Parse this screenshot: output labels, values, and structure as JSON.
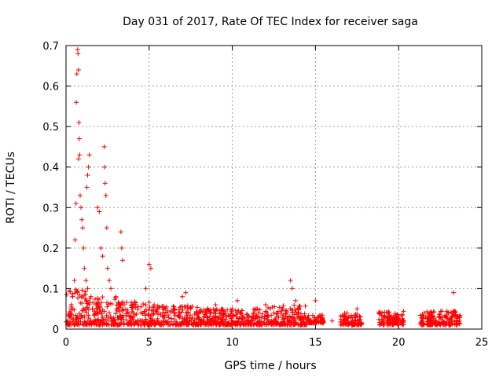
{
  "chart_data": {
    "type": "scatter",
    "title": "Day 031 of 2017, Rate Of TEC Index for receiver saga",
    "xlabel": "GPS time / hours",
    "ylabel": "ROTI / TECUs",
    "xlim": [
      0,
      25
    ],
    "ylim": [
      0,
      0.7
    ],
    "xticks": [
      0,
      5,
      10,
      15,
      20,
      25
    ],
    "yticks": [
      0,
      0.1,
      0.2,
      0.3,
      0.4,
      0.5,
      0.6,
      0.7
    ],
    "grid": true,
    "marker": "+",
    "series_color": "#ff0000",
    "series": [
      {
        "name": "ROTI",
        "points": [
          [
            0.1,
            0.02
          ],
          [
            0.2,
            0.03
          ],
          [
            0.3,
            0.05
          ],
          [
            0.4,
            0.08
          ],
          [
            0.5,
            0.12
          ],
          [
            0.55,
            0.22
          ],
          [
            0.6,
            0.31
          ],
          [
            0.62,
            0.56
          ],
          [
            0.65,
            0.63
          ],
          [
            0.7,
            0.69
          ],
          [
            0.72,
            0.68
          ],
          [
            0.75,
            0.64
          ],
          [
            0.78,
            0.51
          ],
          [
            0.8,
            0.47
          ],
          [
            0.82,
            0.43
          ],
          [
            0.75,
            0.42
          ],
          [
            0.85,
            0.33
          ],
          [
            0.9,
            0.3
          ],
          [
            0.95,
            0.27
          ],
          [
            1.0,
            0.25
          ],
          [
            1.05,
            0.2
          ],
          [
            1.1,
            0.15
          ],
          [
            1.2,
            0.12
          ],
          [
            1.3,
            0.1
          ],
          [
            1.25,
            0.35
          ],
          [
            1.3,
            0.38
          ],
          [
            1.35,
            0.4
          ],
          [
            1.4,
            0.43
          ],
          [
            1.5,
            0.08
          ],
          [
            1.6,
            0.05
          ],
          [
            1.8,
            0.06
          ],
          [
            1.9,
            0.3
          ],
          [
            2.0,
            0.29
          ],
          [
            2.1,
            0.2
          ],
          [
            2.2,
            0.18
          ],
          [
            2.3,
            0.45
          ],
          [
            2.32,
            0.4
          ],
          [
            2.35,
            0.36
          ],
          [
            2.4,
            0.33
          ],
          [
            2.45,
            0.25
          ],
          [
            2.5,
            0.15
          ],
          [
            2.6,
            0.12
          ],
          [
            2.7,
            0.1
          ],
          [
            3.0,
            0.08
          ],
          [
            3.3,
            0.24
          ],
          [
            3.35,
            0.2
          ],
          [
            3.4,
            0.17
          ],
          [
            3.5,
            0.06
          ],
          [
            4.0,
            0.05
          ],
          [
            4.5,
            0.04
          ],
          [
            4.8,
            0.1
          ],
          [
            5.0,
            0.16
          ],
          [
            5.1,
            0.15
          ],
          [
            5.3,
            0.06
          ],
          [
            5.5,
            0.05
          ],
          [
            6.0,
            0.04
          ],
          [
            6.5,
            0.05
          ],
          [
            7.0,
            0.08
          ],
          [
            7.2,
            0.09
          ],
          [
            7.5,
            0.05
          ],
          [
            8.0,
            0.04
          ],
          [
            8.5,
            0.05
          ],
          [
            9.0,
            0.06
          ],
          [
            9.5,
            0.04
          ],
          [
            10.0,
            0.05
          ],
          [
            10.3,
            0.07
          ],
          [
            10.5,
            0.04
          ],
          [
            11.0,
            0.03
          ],
          [
            11.5,
            0.05
          ],
          [
            12.0,
            0.06
          ],
          [
            12.5,
            0.04
          ],
          [
            13.0,
            0.05
          ],
          [
            13.5,
            0.12
          ],
          [
            13.6,
            0.1
          ],
          [
            13.8,
            0.07
          ],
          [
            14.0,
            0.05
          ],
          [
            14.3,
            0.03
          ],
          [
            15.0,
            0.07
          ],
          [
            15.2,
            0.03
          ],
          [
            16.0,
            0.02
          ],
          [
            17.0,
            0.03
          ],
          [
            17.5,
            0.05
          ],
          [
            19.0,
            0.04
          ],
          [
            19.5,
            0.03
          ],
          [
            20.0,
            0.03
          ],
          [
            20.3,
            0.02
          ],
          [
            21.5,
            0.03
          ],
          [
            22.0,
            0.04
          ],
          [
            22.5,
            0.03
          ],
          [
            23.0,
            0.04
          ],
          [
            23.3,
            0.09
          ],
          [
            23.5,
            0.03
          ]
        ],
        "bands": [
          [
            0.0,
            1.5,
            0.01,
            0.1
          ],
          [
            1.5,
            3.0,
            0.01,
            0.08
          ],
          [
            3.0,
            5.0,
            0.01,
            0.07
          ],
          [
            5.0,
            8.0,
            0.01,
            0.06
          ],
          [
            8.0,
            12.0,
            0.01,
            0.05
          ],
          [
            12.0,
            14.5,
            0.01,
            0.06
          ],
          [
            14.5,
            15.5,
            0.015,
            0.035
          ],
          [
            16.5,
            17.8,
            0.01,
            0.04
          ],
          [
            18.8,
            20.3,
            0.01,
            0.045
          ],
          [
            21.3,
            23.7,
            0.01,
            0.045
          ]
        ]
      }
    ]
  }
}
